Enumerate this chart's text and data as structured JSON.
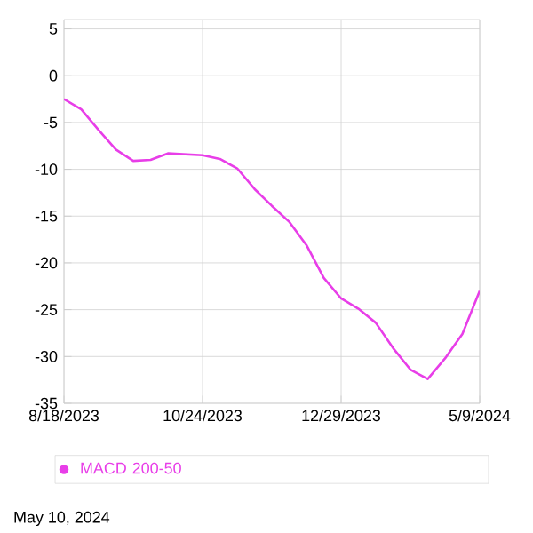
{
  "chart_data": {
    "type": "line",
    "categories": [
      "8/18/2023",
      null,
      null,
      null,
      null,
      null,
      null,
      null,
      "10/24/2023",
      null,
      null,
      null,
      null,
      null,
      null,
      null,
      "12/29/2023",
      null,
      null,
      null,
      null,
      null,
      null,
      null,
      "5/9/2024"
    ],
    "series": [
      {
        "name": "MACD 200-50",
        "color": "#e83ee8",
        "values": [
          -2.5,
          -3.6,
          -5.8,
          -7.9,
          -9.1,
          -9.0,
          -8.3,
          -8.4,
          -8.5,
          -8.9,
          -9.9,
          -12.1,
          -13.9,
          -15.6,
          -18.1,
          -21.6,
          -23.8,
          -24.9,
          -26.4,
          -29.1,
          -31.4,
          -32.4,
          -30.2,
          -27.6,
          -23.0
        ]
      }
    ],
    "ylim": [
      -35,
      6
    ],
    "yticks": [
      -35,
      -30,
      -25,
      -20,
      -15,
      -10,
      -5,
      0,
      5
    ],
    "grid": true,
    "legend": "bottom",
    "annotations": [
      "May 10, 2024"
    ]
  }
}
